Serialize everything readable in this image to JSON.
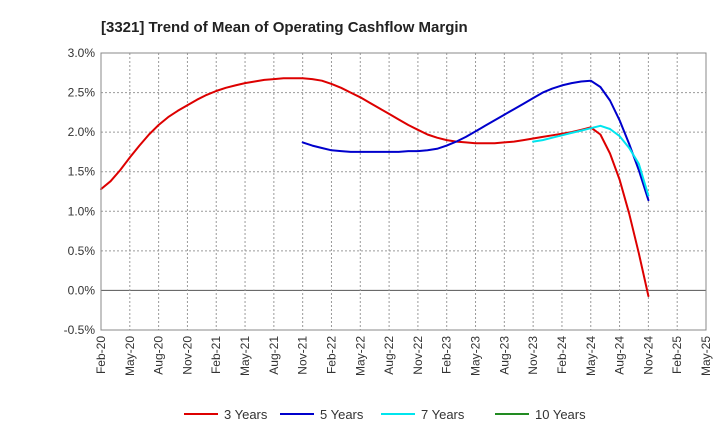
{
  "chart_data": {
    "type": "line",
    "title": "[3321]  Trend of Mean of Operating Cashflow Margin",
    "xlabel": "",
    "ylabel": "",
    "x_ticks": [
      "Feb-20",
      "May-20",
      "Aug-20",
      "Nov-20",
      "Feb-21",
      "May-21",
      "Aug-21",
      "Nov-21",
      "Feb-22",
      "May-22",
      "Aug-22",
      "Nov-22",
      "Feb-23",
      "May-23",
      "Aug-23",
      "Nov-23",
      "Feb-24",
      "May-24",
      "Aug-24",
      "Nov-24",
      "Feb-25",
      "May-25"
    ],
    "y_ticks": [
      "3.0%",
      "2.5%",
      "2.0%",
      "1.5%",
      "1.0%",
      "0.5%",
      "0.0%",
      "-0.5%"
    ],
    "ylim": [
      -0.5,
      3.0
    ],
    "y_unit": "%",
    "grid": true,
    "legend_position": "bottom",
    "series": [
      {
        "name": "3 Years",
        "color": "#dd0000",
        "x": [
          "2020-02",
          "2020-03",
          "2020-04",
          "2020-05",
          "2020-06",
          "2020-07",
          "2020-08",
          "2020-09",
          "2020-10",
          "2020-11",
          "2020-12",
          "2021-01",
          "2021-02",
          "2021-03",
          "2021-04",
          "2021-05",
          "2021-06",
          "2021-07",
          "2021-08",
          "2021-09",
          "2021-10",
          "2021-11",
          "2021-12",
          "2022-01",
          "2022-02",
          "2022-03",
          "2022-04",
          "2022-05",
          "2022-06",
          "2022-07",
          "2022-08",
          "2022-09",
          "2022-10",
          "2022-11",
          "2022-12",
          "2023-01",
          "2023-02",
          "2023-03",
          "2023-04",
          "2023-05",
          "2023-06",
          "2023-07",
          "2023-08",
          "2023-09",
          "2023-10",
          "2023-11",
          "2023-12",
          "2024-01",
          "2024-02",
          "2024-03",
          "2024-04",
          "2024-05",
          "2024-06",
          "2024-07",
          "2024-08",
          "2024-09",
          "2024-10",
          "2024-11"
        ],
        "values": [
          1.28,
          1.38,
          1.52,
          1.68,
          1.83,
          1.97,
          2.09,
          2.19,
          2.27,
          2.34,
          2.41,
          2.47,
          2.52,
          2.56,
          2.59,
          2.62,
          2.64,
          2.66,
          2.67,
          2.68,
          2.68,
          2.68,
          2.67,
          2.65,
          2.61,
          2.56,
          2.5,
          2.44,
          2.37,
          2.3,
          2.23,
          2.16,
          2.09,
          2.03,
          1.97,
          1.93,
          1.9,
          1.88,
          1.87,
          1.86,
          1.86,
          1.86,
          1.87,
          1.88,
          1.9,
          1.92,
          1.94,
          1.96,
          1.98,
          2.0,
          2.03,
          2.06,
          1.97,
          1.73,
          1.4,
          0.97,
          0.47,
          -0.07
        ]
      },
      {
        "name": "5 Years",
        "color": "#0000cc",
        "x": [
          "2021-11",
          "2021-12",
          "2022-01",
          "2022-02",
          "2022-03",
          "2022-04",
          "2022-05",
          "2022-06",
          "2022-07",
          "2022-08",
          "2022-09",
          "2022-10",
          "2022-11",
          "2022-12",
          "2023-01",
          "2023-02",
          "2023-03",
          "2023-04",
          "2023-05",
          "2023-06",
          "2023-07",
          "2023-08",
          "2023-09",
          "2023-10",
          "2023-11",
          "2023-12",
          "2024-01",
          "2024-02",
          "2024-03",
          "2024-04",
          "2024-05",
          "2024-06",
          "2024-07",
          "2024-08",
          "2024-09",
          "2024-10",
          "2024-11"
        ],
        "values": [
          1.87,
          1.83,
          1.8,
          1.77,
          1.76,
          1.75,
          1.75,
          1.75,
          1.75,
          1.75,
          1.75,
          1.76,
          1.76,
          1.77,
          1.79,
          1.83,
          1.88,
          1.94,
          2.01,
          2.08,
          2.15,
          2.22,
          2.29,
          2.36,
          2.43,
          2.5,
          2.55,
          2.59,
          2.62,
          2.64,
          2.65,
          2.57,
          2.4,
          2.15,
          1.85,
          1.52,
          1.14
        ]
      },
      {
        "name": "7 Years",
        "color": "#00e5ee",
        "x": [
          "2023-11",
          "2023-12",
          "2024-01",
          "2024-02",
          "2024-03",
          "2024-04",
          "2024-05",
          "2024-06",
          "2024-07",
          "2024-08",
          "2024-09",
          "2024-10",
          "2024-11"
        ],
        "values": [
          1.88,
          1.9,
          1.93,
          1.96,
          1.99,
          2.02,
          2.05,
          2.08,
          2.04,
          1.95,
          1.8,
          1.6,
          1.2
        ]
      },
      {
        "name": "10 Years",
        "color": "#228b22",
        "x": [],
        "values": []
      }
    ]
  }
}
